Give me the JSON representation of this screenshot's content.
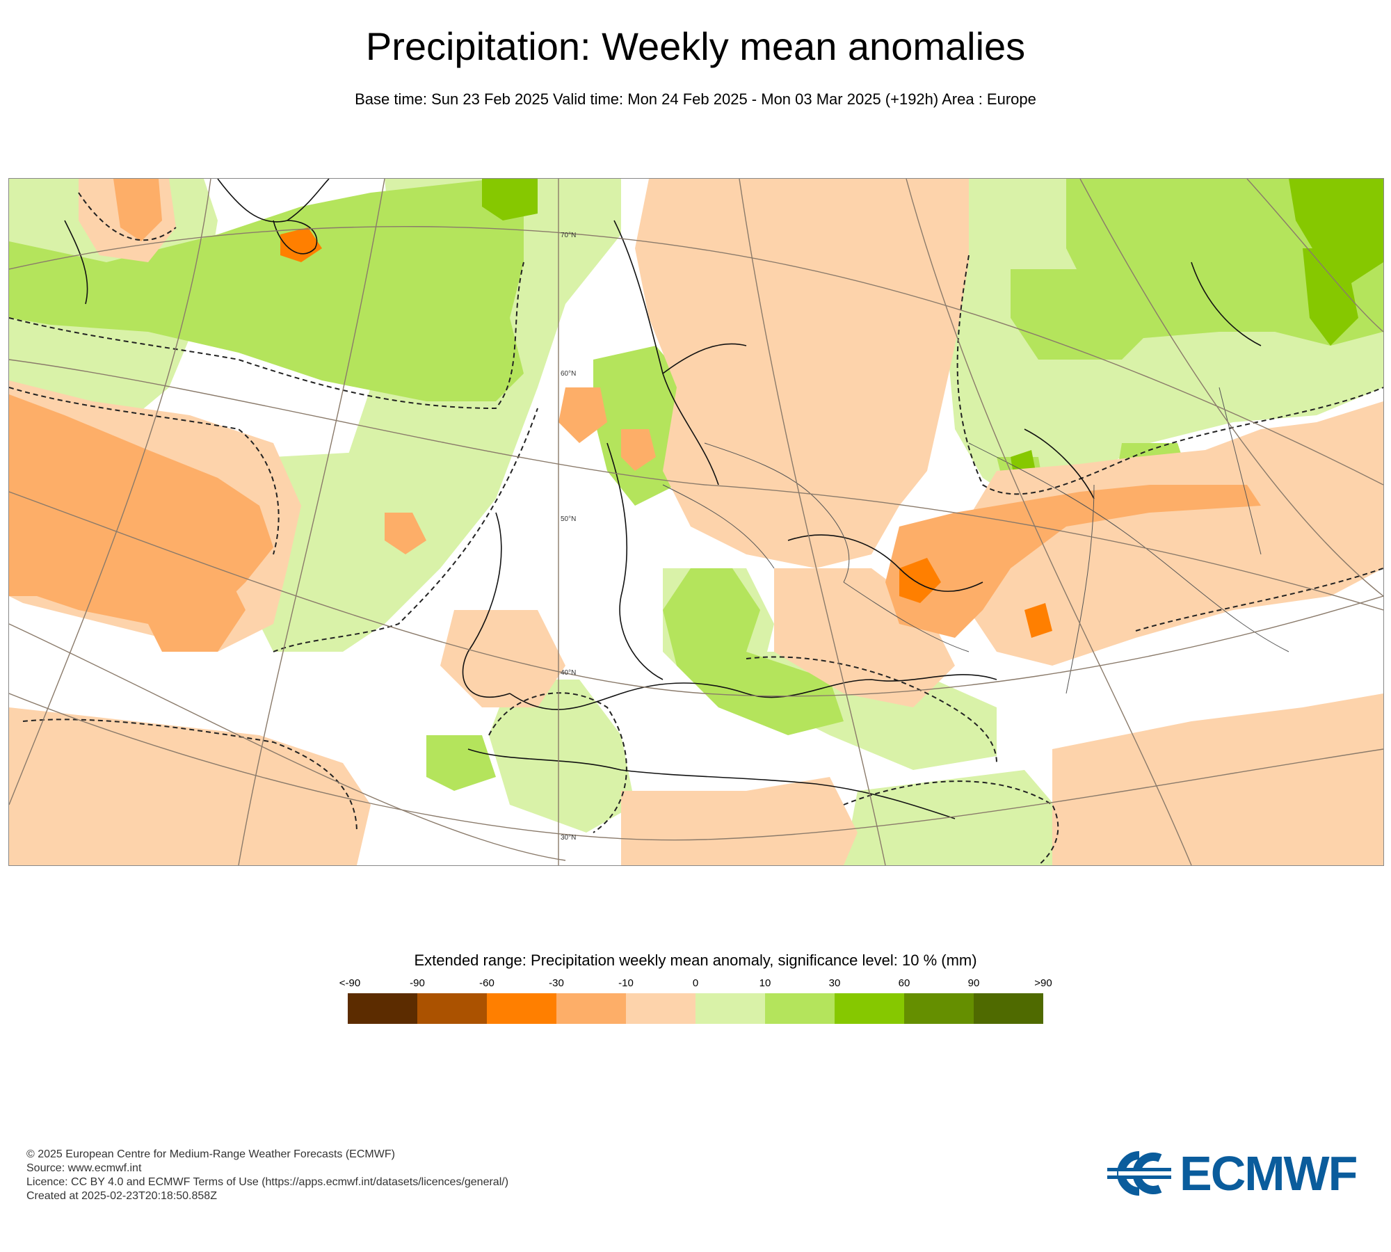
{
  "title": "Precipitation: Weekly mean anomalies",
  "subtitle": "Base time: Sun 23 Feb 2025 Valid time: Mon 24 Feb 2025 - Mon 03 Mar 2025 (+192h) Area : Europe",
  "map": {
    "lat_labels": [
      "70°N",
      "60°N",
      "50°N",
      "40°N",
      "30°N"
    ],
    "anomaly_colors": {
      "negative_light": "#fdd3ab",
      "negative_medium": "#fdae68",
      "negative_strong": "#ff7f00",
      "positive_light": "#d9f2a8",
      "positive_medium": "#b4e45c",
      "positive_strong": "#86c800"
    }
  },
  "legend": {
    "title": "Extended range: Precipitation weekly mean anomaly, significance level: 10 % (mm)",
    "labels": [
      "<-90",
      "-90",
      "-60",
      "-30",
      "-10",
      "0",
      "10",
      "30",
      "60",
      "90",
      ">90"
    ],
    "colors": [
      "#5c2c00",
      "#ab5200",
      "#ff7f00",
      "#fdae68",
      "#fdd3ab",
      "#d9f2a8",
      "#b4e45c",
      "#86c800",
      "#658f00",
      "#4f6a00"
    ]
  },
  "footer": {
    "copyright": "© 2025 European Centre for Medium-Range Weather Forecasts (ECMWF)",
    "source": "Source: www.ecmwf.int",
    "licence": "Licence: CC BY 4.0 and ECMWF Terms of Use (https://apps.ecmwf.int/datasets/licences/general/)",
    "created": "Created at 2025-02-23T20:18:50.858Z"
  },
  "logo": {
    "text": "ECMWF",
    "color": "#0a5c9c"
  }
}
